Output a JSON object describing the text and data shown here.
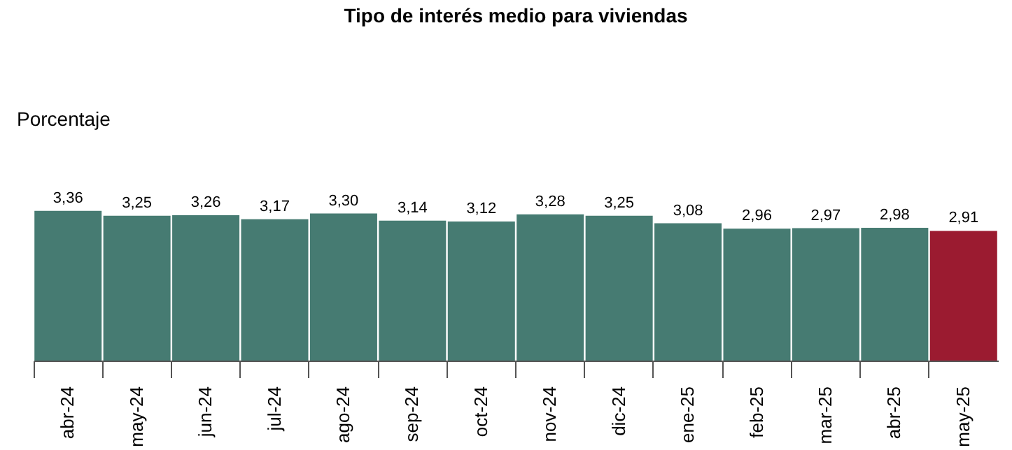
{
  "chart_data": {
    "type": "bar",
    "title": "Tipo de interés medio para viviendas",
    "annotations": [
      "Porcentaje"
    ],
    "categories": [
      "abr-24",
      "may-24",
      "jun-24",
      "jul-24",
      "ago-24",
      "sep-24",
      "oct-24",
      "nov-24",
      "dic-24",
      "ene-25",
      "feb-25",
      "mar-25",
      "abr-25",
      "may-25"
    ],
    "values": [
      3.36,
      3.25,
      3.26,
      3.17,
      3.3,
      3.14,
      3.12,
      3.28,
      3.25,
      3.08,
      2.96,
      2.97,
      2.98,
      2.91
    ],
    "value_labels": [
      "3,36",
      "3,25",
      "3,26",
      "3,17",
      "3,30",
      "3,14",
      "3,12",
      "3,28",
      "3,25",
      "3,08",
      "2,96",
      "2,97",
      "2,98",
      "2,91"
    ],
    "colors": [
      "#467b72",
      "#467b72",
      "#467b72",
      "#467b72",
      "#467b72",
      "#467b72",
      "#467b72",
      "#467b72",
      "#467b72",
      "#467b72",
      "#467b72",
      "#467b72",
      "#467b72",
      "#9b1b30"
    ],
    "grid": false,
    "legend": false
  }
}
